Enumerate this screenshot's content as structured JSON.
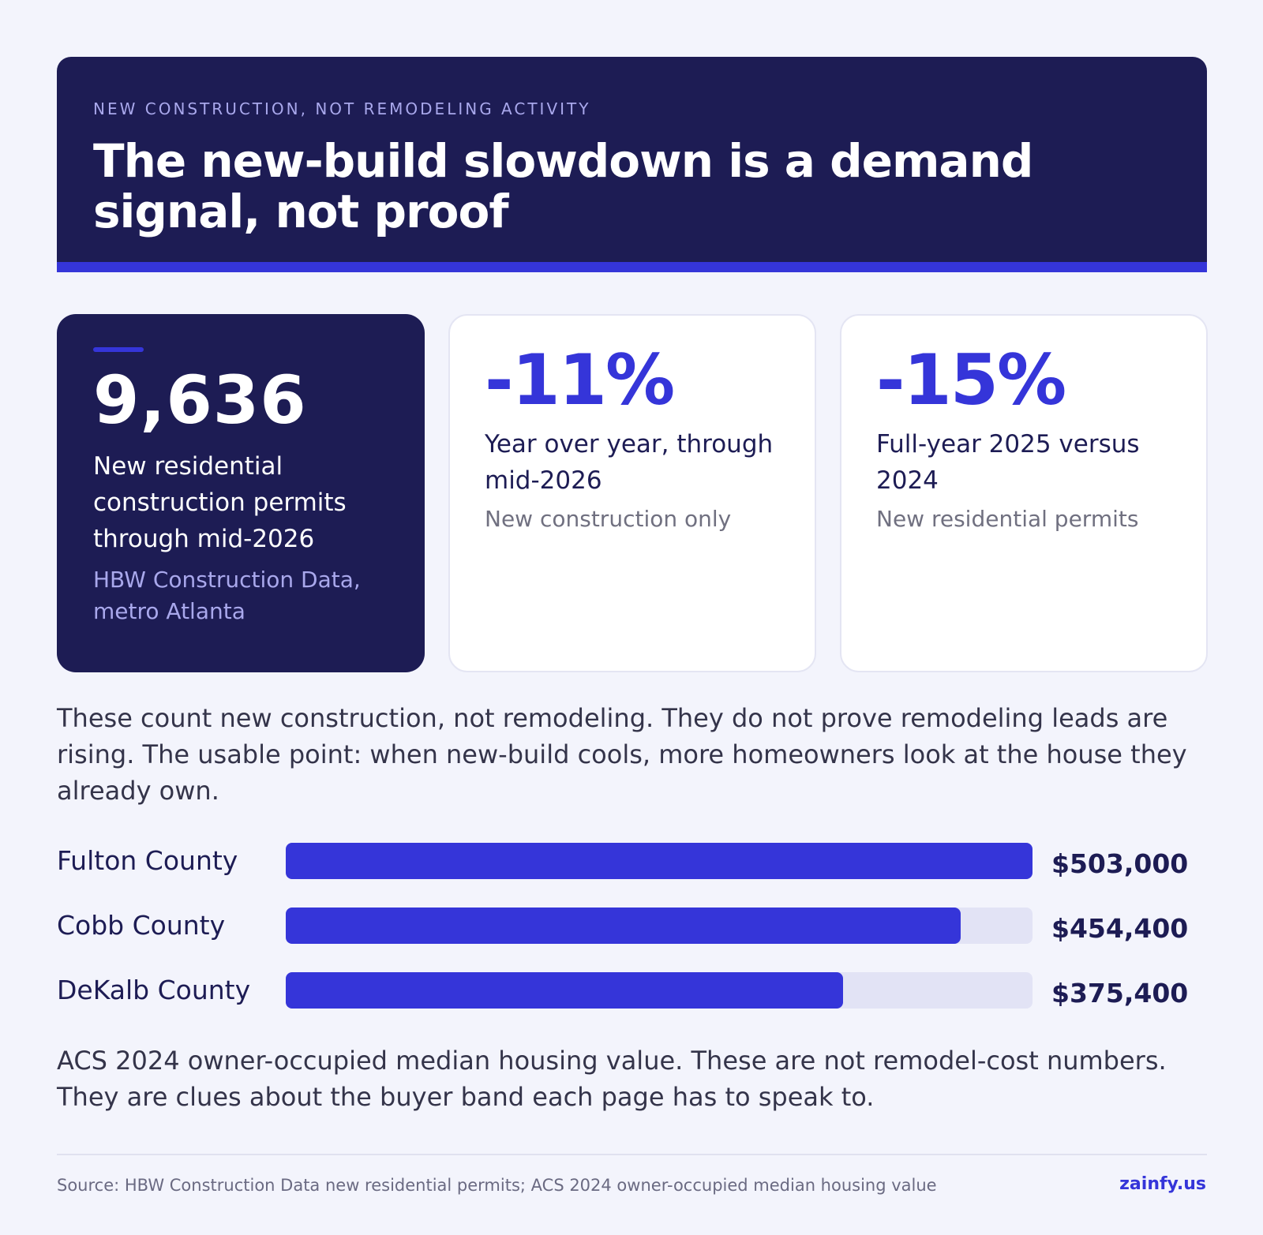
{
  "header": {
    "eyebrow": "NEW CONSTRUCTION, NOT REMODELING ACTIVITY",
    "title": "The new-build slowdown is a demand signal, not proof"
  },
  "stats": [
    {
      "value": "9,636",
      "label": "New residential construction permits through mid-2026",
      "note": "HBW Construction Data, metro Atlanta"
    },
    {
      "value": "-11%",
      "label": "Year over year, through mid-2026",
      "note": "New construction only"
    },
    {
      "value": "-15%",
      "label": "Full-year 2025 versus 2024",
      "note": "New residential permits"
    }
  ],
  "intro": "These count new construction, not remodeling. They do not prove remodeling leads are rising. The usable point: when new-build cools, more homeowners look at the house they already own.",
  "chart_data": {
    "type": "bar",
    "orientation": "horizontal",
    "categories": [
      "Fulton County",
      "Cobb County",
      "DeKalb County"
    ],
    "values": [
      503000,
      454400,
      375400
    ],
    "value_labels": [
      "$503,000",
      "$454,400",
      "$375,400"
    ],
    "xlim": [
      0,
      503000
    ],
    "title": "",
    "xlabel": "",
    "ylabel": "",
    "grid": false,
    "legend": "none",
    "colors": {
      "bar": "#3535d9",
      "track": "#e2e3f5"
    }
  },
  "caption": "ACS 2024 owner-occupied median housing value. These are not remodel-cost numbers. They are clues about the buyer band each page has to speak to.",
  "footer": {
    "source": "Source: HBW Construction Data new residential permits; ACS 2024 owner-occupied median housing value",
    "brand": "zainfy.us"
  },
  "colors": {
    "navy": "#1d1c54",
    "accent": "#3535d9",
    "background": "#f3f4fc"
  }
}
